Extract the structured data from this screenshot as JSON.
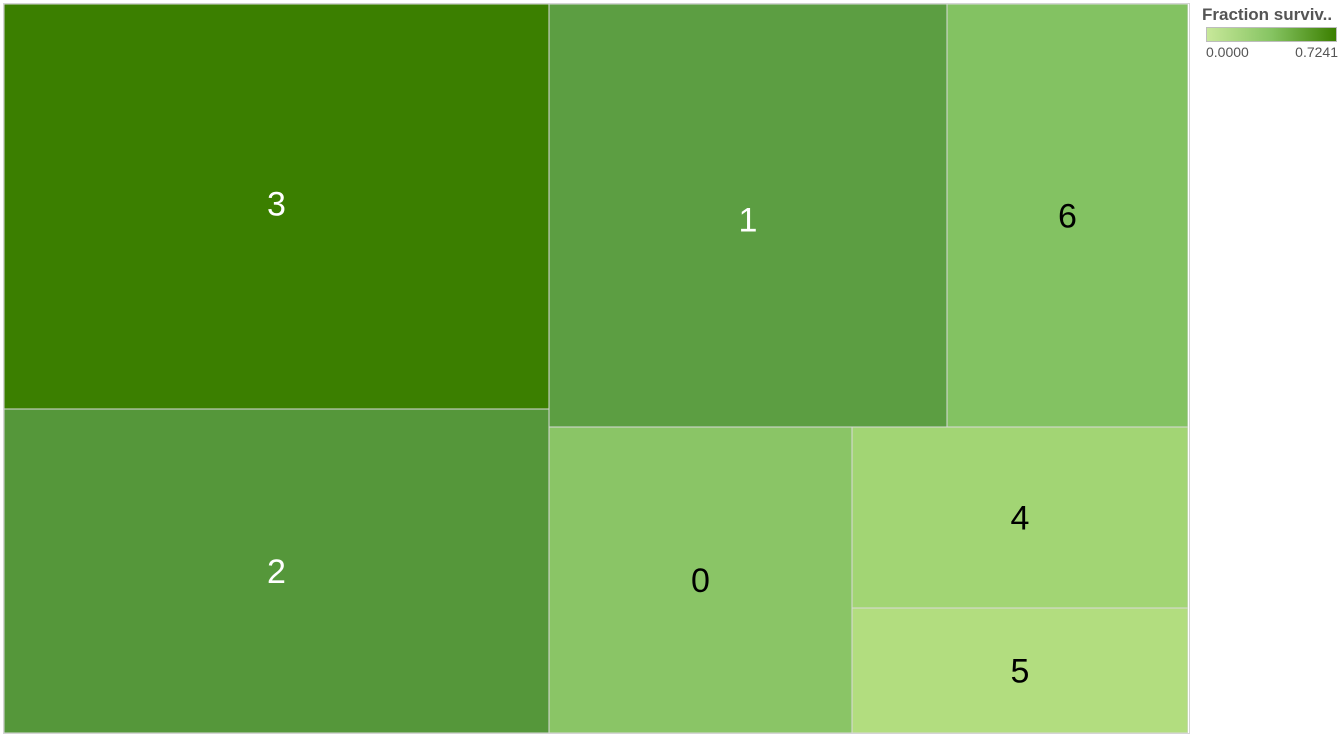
{
  "chart_data": {
    "type": "treemap",
    "title": "",
    "legend": {
      "title": "Fraction surviv..",
      "min_label": "0.0000",
      "max_label": "0.7241",
      "min": 0.0,
      "max": 0.7241,
      "color_low": "#c8e89a",
      "color_high": "#3b7f00",
      "placement": "top-right"
    },
    "nodes": [
      {
        "label": "3",
        "color": "#3b7f00",
        "text_color": "#ffffff"
      },
      {
        "label": "2",
        "color": "#55973a",
        "text_color": "#ffffff"
      },
      {
        "label": "1",
        "color": "#5c9e42",
        "text_color": "#ffffff"
      },
      {
        "label": "6",
        "color": "#83c262",
        "text_color": "#000000"
      },
      {
        "label": "0",
        "color": "#8ac566",
        "text_color": "#000000"
      },
      {
        "label": "4",
        "color": "#a2d574",
        "text_color": "#000000"
      },
      {
        "label": "5",
        "color": "#b2dd7f",
        "text_color": "#000000"
      }
    ]
  }
}
